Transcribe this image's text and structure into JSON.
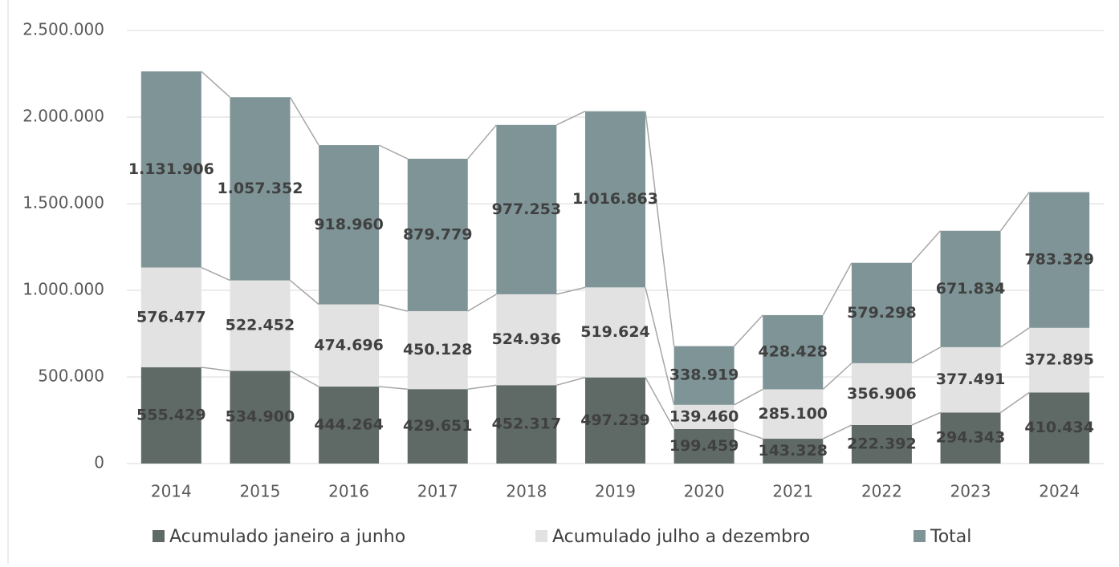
{
  "chart_data": {
    "type": "stacked_bar",
    "categories": [
      "2014",
      "2015",
      "2016",
      "2017",
      "2018",
      "2019",
      "2020",
      "2021",
      "2022",
      "2023",
      "2024"
    ],
    "series": [
      {
        "name": "Acumulado janeiro a junho",
        "color": "#5f6a67",
        "values": [
          555429,
          534900,
          444264,
          429651,
          452317,
          497239,
          199459,
          143328,
          222392,
          294343,
          410434
        ],
        "value_labels": [
          "555.429",
          "534.900",
          "444.264",
          "429.651",
          "452.317",
          "497.239",
          "199.459",
          "143.328",
          "222.392",
          "294.343",
          "410.434"
        ]
      },
      {
        "name": "Acumulado julho a dezembro",
        "color": "#e2e2e2",
        "values": [
          576477,
          522452,
          474696,
          450128,
          524936,
          519624,
          139460,
          285100,
          356906,
          377491,
          372895
        ],
        "value_labels": [
          "576.477",
          "522.452",
          "474.696",
          "450.128",
          "524.936",
          "519.624",
          "139.460",
          "285.100",
          "356.906",
          "377.491",
          "372.895"
        ]
      },
      {
        "name": "Total",
        "color": "#7e9496",
        "values": [
          1131906,
          1057352,
          918960,
          879779,
          977253,
          1016863,
          338919,
          428428,
          579298,
          671834,
          783329
        ],
        "value_labels": [
          "1.131.906",
          "1.057.352",
          "918.960",
          "879.779",
          "977.253",
          "1.016.863",
          "338.919",
          "428.428",
          "579.298",
          "671.834",
          "783.329"
        ]
      }
    ],
    "ylim": [
      0,
      2500000
    ],
    "yticks": [
      0,
      {
        "value": 500000,
        "label": "500.000"
      },
      {
        "value": 1000000,
        "label": "1.000.000"
      },
      {
        "value": 1500000,
        "label": "1.500.000"
      },
      {
        "value": 2000000,
        "label": "2.000.000"
      },
      {
        "value": 2500000,
        "label": "2.500.000"
      }
    ],
    "grid": true,
    "legend": "bottom"
  }
}
